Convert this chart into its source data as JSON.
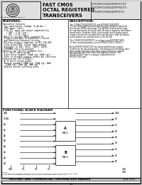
{
  "title_left": "FAST CMOS\nOCTAL REGISTERED\nTRANSCEIVERS",
  "title_right": "IDT29FCT2052DTPFCT2T\nIDT29FCT2052DTPFGCT1\nIDT29FCT2052DTPFCT1",
  "features_title": "FEATURES:",
  "description_title": "DESCRIPTION:",
  "section_title": "FUNCTIONAL BLOCK DIAGRAM",
  "section_super": "1,2",
  "bottom_bar": "MILITARY AND COMMERCIAL TEMPERATURE RANGES",
  "bottom_right": "JUNE 1999",
  "background": "#e8e8e8",
  "header_bg": "#d0d0d0",
  "border_color": "#000000",
  "logo_text": "Integrated Device Technology, Inc.",
  "page_bottom": "5-1",
  "features_lines": [
    "Equivalent features:",
    " Low input/output leakage (4 μA max.)",
    " CMOS power levels",
    " True TTL input and output compatibility",
    "   • VOH = 3.3V (typ.)",
    "   • VOL = 0.3V (typ.)",
    " Meets or exceeds JEDEC standard 18",
    " Product available in Radiation 1 tested",
    " and Radiation Enhanced versions",
    " Military product compliant to MIL-STD-883,",
    " Class B and DESC listed (dual marked)",
    " Available in 28P, 28LCC, 28DIP, 28GIP,",
    " 24SOMARK and 1.5G packages",
    "Features for IDT FCT Standard Test:",
    " B, C and D speed grades",
    " Eight-drive outputs (16mA typ, 64mA typ.)",
    " Power of disable outputs permit bus insertion",
    "Featured Bus IDT FCT2052T:",
    " A, B and G system grades",
    " Receive outputs (18mA typ. 12mA typ. 8mA)",
    "  (14mA typ. 12mA typ. 8mA typ.)",
    " Reduced system switching noise"
  ],
  "description_lines": [
    "The IDT29FCT2052DTPFCT2T and IDT29FCT2052DTPF-",
    "CT1 are 8-bit registered transceivers built using an advanced",
    "dual metal CMOS technology. This BiCMOS back-to-back regis-",
    "ter simultaneously driving in both directions between two bidirec-",
    "tional buses. Separate clock, clock-enable and 8 mode output",
    "enable controls are provided for each direction. Both A-outputs",
    "and B-outputs are guaranteed to sink 64 mA.",
    "",
    "The IDT29FCT2052DTPFCT1 is a plug-in and IDT29FCT2052",
    "T-1 bus-surviving options, prime IDT29FCT2052 T2052T-1.",
    "",
    "As to IDT29FCT2052T-1CT has totem-pole/tristate outputs",
    "suitable for driving backplanes. This advanced technology mini-",
    "mum undershoot and controlled output fall times reduces",
    "the need for external series terminating resistors. The",
    "IDT29FCT2052T part is a plug-in replacement for",
    "IDT29FCT241 part."
  ],
  "left_signals": [
    "CAB",
    "GCAB",
    "A0",
    "A1",
    "A2",
    "A3",
    "A4",
    "A5",
    "A6",
    "A7"
  ],
  "right_signals": [
    "GBA",
    "B0",
    "B1",
    "B2",
    "B3",
    "B4",
    "B5",
    "B6",
    "B7"
  ],
  "ctrl_bottom": [
    "CBA",
    "OE1",
    "CP2"
  ],
  "notes_text": "NOTES:\n1. Includes four transient buses is one of Class A, S500KT-TPFCT is 1K part loading option.\n2. IDT Corp. is a registered trademark of Integrated Device Technology, Inc."
}
